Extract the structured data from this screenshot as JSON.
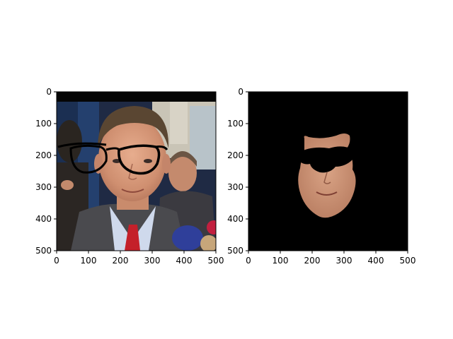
{
  "chart_data": [
    {
      "type": "image",
      "image_content": "photo of a man in suit and red tie with drawn black eyeglasses overlay, other people in background",
      "xlim": [
        0,
        500
      ],
      "ylim": [
        500,
        0
      ],
      "xticks": [
        0,
        100,
        200,
        300,
        400,
        500
      ],
      "yticks": [
        0,
        100,
        200,
        300,
        400,
        500
      ],
      "xtick_labels": [
        "0",
        "100",
        "200",
        "300",
        "400",
        "500"
      ],
      "ytick_labels": [
        "0",
        "100",
        "200",
        "300",
        "400",
        "500"
      ],
      "grid": false
    },
    {
      "type": "image",
      "image_content": "segmented face mask on black background with dark glasses region",
      "xlim": [
        0,
        500
      ],
      "ylim": [
        500,
        0
      ],
      "xticks": [
        0,
        100,
        200,
        300,
        400,
        500
      ],
      "yticks": [
        0,
        100,
        200,
        300,
        400,
        500
      ],
      "xtick_labels": [
        "0",
        "100",
        "200",
        "300",
        "400",
        "500"
      ],
      "ytick_labels": [
        "0",
        "100",
        "200",
        "300",
        "400",
        "500"
      ],
      "grid": false
    }
  ]
}
